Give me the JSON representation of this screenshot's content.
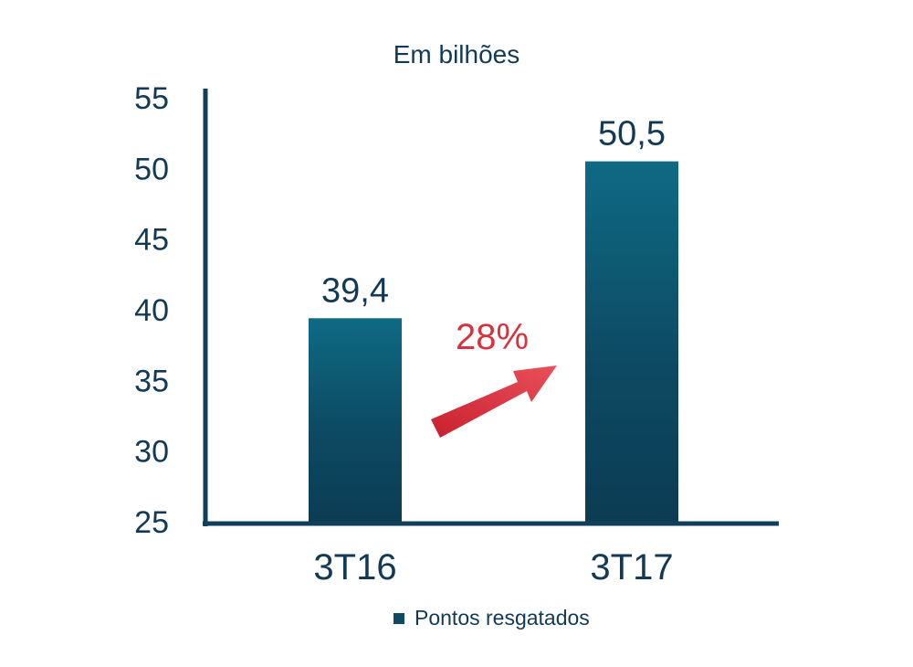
{
  "chart_data": {
    "type": "bar",
    "title": "Em bilhões",
    "categories": [
      "3T16",
      "3T17"
    ],
    "series": [
      {
        "name": "Pontos resgatados",
        "values": [
          39.4,
          50.5
        ]
      }
    ],
    "data_labels": [
      "39,4",
      "50,5"
    ],
    "ylim": [
      25,
      55
    ],
    "yticks": [
      "25",
      "30",
      "35",
      "40",
      "45",
      "50",
      "55"
    ],
    "grid": false,
    "legend_position": "bottom",
    "annotation": {
      "text": "28%",
      "color": "#d9323f"
    },
    "colors": {
      "bar_top": "#0f6a84",
      "bar_bottom": "#0c3c54",
      "axis": "#0f3f5a",
      "text": "#123a55"
    }
  }
}
